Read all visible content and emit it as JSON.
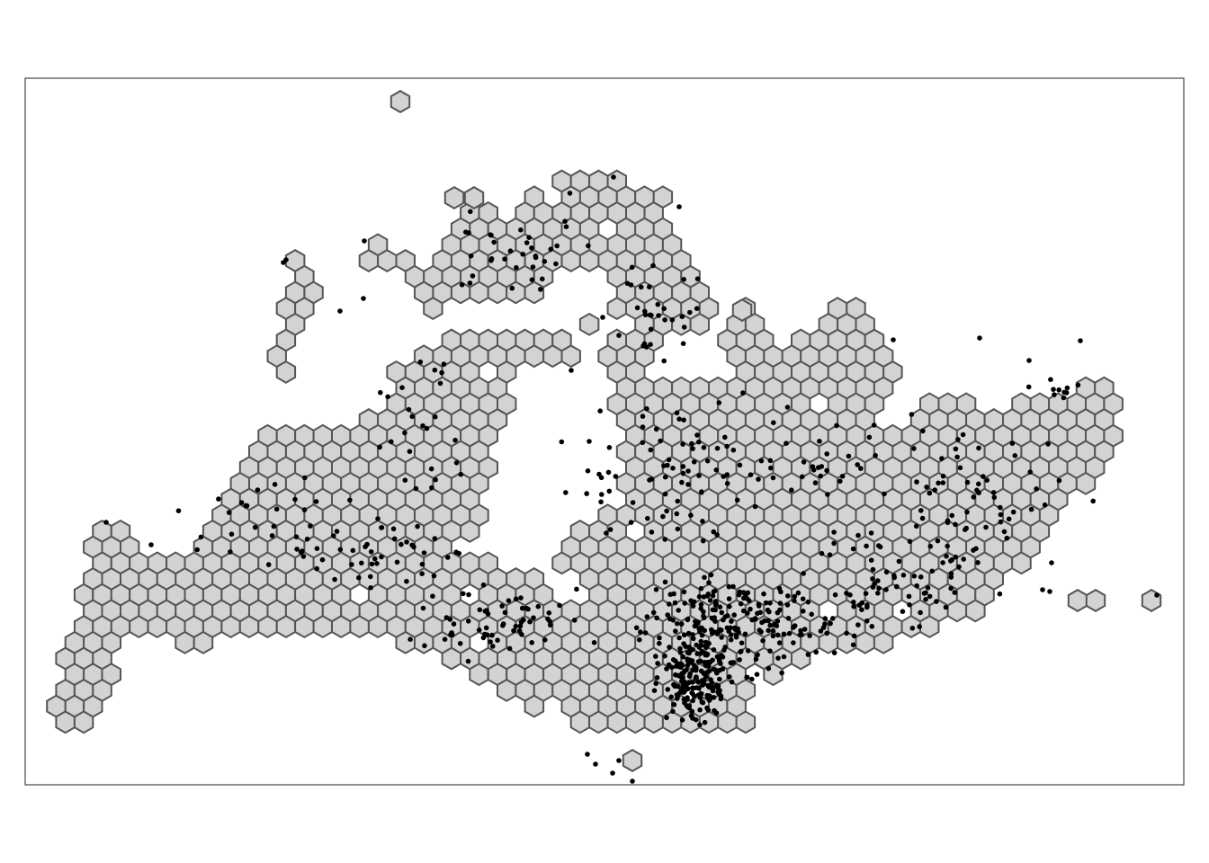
{
  "map": {
    "type": "hexbin-grid-with-points",
    "title": "",
    "colors": {
      "hex_fill": "#d3d3d3",
      "hex_stroke": "#555555",
      "point": "#000000",
      "frame": "#222222",
      "background": "#ffffff"
    },
    "hex_cell_count": 640,
    "point_count": 900,
    "seed": 42
  }
}
